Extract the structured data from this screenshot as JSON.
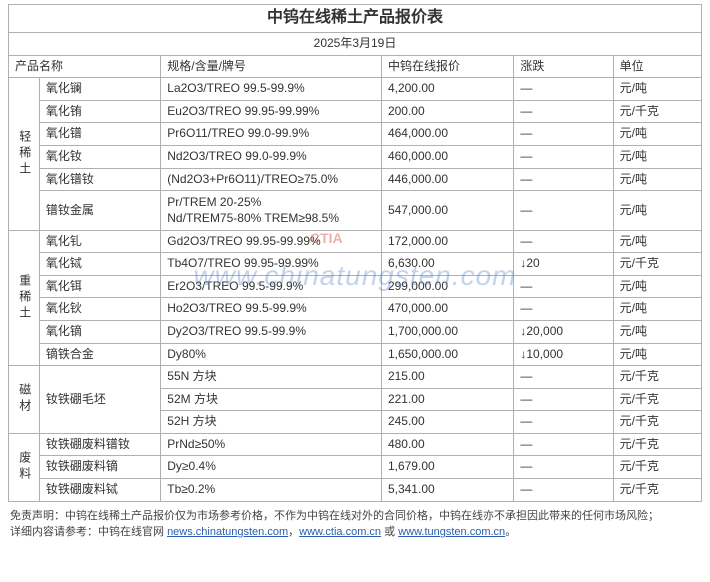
{
  "title": "中钨在线稀土产品报价表",
  "date": "2025年3月19日",
  "columns": {
    "name": "产品名称",
    "spec": "规格/含量/牌号",
    "price": "中钨在线报价",
    "change": "涨跌",
    "unit": "单位"
  },
  "groups": [
    {
      "label": "轻稀土",
      "items": [
        {
          "name": "氧化镧",
          "spec": "La2O3/TREO 99.5-99.9%",
          "price": "4,200.00",
          "change": "—",
          "unit": "元/吨"
        },
        {
          "name": "氧化铕",
          "spec": "Eu2O3/TREO 99.95-99.99%",
          "price": "200.00",
          "change": "—",
          "unit": "元/千克"
        },
        {
          "name": "氧化镨",
          "spec": "Pr6O11/TREO 99.0-99.9%",
          "price": "464,000.00",
          "change": "—",
          "unit": "元/吨"
        },
        {
          "name": "氧化钕",
          "spec": "Nd2O3/TREO 99.0-99.9%",
          "price": "460,000.00",
          "change": "—",
          "unit": "元/吨"
        },
        {
          "name": "氧化镨钕",
          "spec": "(Nd2O3+Pr6O11)/TREO≥75.0%",
          "price": "446,000.00",
          "change": "—",
          "unit": "元/吨"
        },
        {
          "name": "镨钕金属",
          "spec": "Pr/TREM 20-25%\nNd/TREM75-80% TREM≥98.5%",
          "price": "547,000.00",
          "change": "—",
          "unit": "元/吨",
          "multi": true
        }
      ]
    },
    {
      "label": "重稀土",
      "items": [
        {
          "name": "氧化钆",
          "spec": "Gd2O3/TREO 99.95-99.99%",
          "price": "172,000.00",
          "change": "—",
          "unit": "元/吨"
        },
        {
          "name": "氧化铽",
          "spec": "Tb4O7/TREO 99.95-99.99%",
          "price": "6,630.00",
          "change": "↓20",
          "unit": "元/千克"
        },
        {
          "name": "氧化铒",
          "spec": "Er2O3/TREO 99.5-99.9%",
          "price": "299,000.00",
          "change": "—",
          "unit": "元/吨"
        },
        {
          "name": "氧化钬",
          "spec": "Ho2O3/TREO 99.5-99.9%",
          "price": "470,000.00",
          "change": "—",
          "unit": "元/吨"
        },
        {
          "name": "氧化镝",
          "spec": "Dy2O3/TREO 99.5-99.9%",
          "price": "1,700,000.00",
          "change": "↓20,000",
          "unit": "元/吨"
        },
        {
          "name": "镝铁合金",
          "spec": "Dy80%",
          "price": "1,650,000.00",
          "change": "↓10,000",
          "unit": "元/吨"
        }
      ]
    },
    {
      "label": "磁材",
      "items": [
        {
          "name": "钕铁硼毛坯",
          "name_rowspan": 3,
          "spec": "55N 方块",
          "price": "215.00",
          "change": "—",
          "unit": "元/千克"
        },
        {
          "name": "",
          "spec": "52M 方块",
          "price": "221.00",
          "change": "—",
          "unit": "元/千克"
        },
        {
          "name": "",
          "spec": "52H 方块",
          "price": "245.00",
          "change": "—",
          "unit": "元/千克"
        }
      ]
    },
    {
      "label": "废料",
      "items": [
        {
          "name": "钕铁硼废料镨钕",
          "spec": "PrNd≥50%",
          "price": "480.00",
          "change": "—",
          "unit": "元/千克"
        },
        {
          "name": "钕铁硼废料镝",
          "spec": "Dy≥0.4%",
          "price": "1,679.00",
          "change": "—",
          "unit": "元/千克"
        },
        {
          "name": "钕铁硼废料铽",
          "spec": "Tb≥0.2%",
          "price": "5,341.00",
          "change": "—",
          "unit": "元/千克"
        }
      ]
    }
  ],
  "footer": {
    "disclaimer_label": "免责声明：",
    "disclaimer_text": "中钨在线稀土产品报价仅为市场参考价格，不作为中钨在线对外的合同价格，中钨在线亦不承担因此带来的任何市场风险；",
    "detail_label": "详细内容请参考：",
    "detail_text": "中钨在线官网 ",
    "link1": "news.chinatungsten.com",
    "sep1": "，",
    "link2": "www.ctia.com.cn",
    "sep2": " 或 ",
    "link3": "www.tungsten.com.cn",
    "period": "。"
  },
  "watermark": "www.chinatungsten.com",
  "watermark_logo": "CTIA"
}
